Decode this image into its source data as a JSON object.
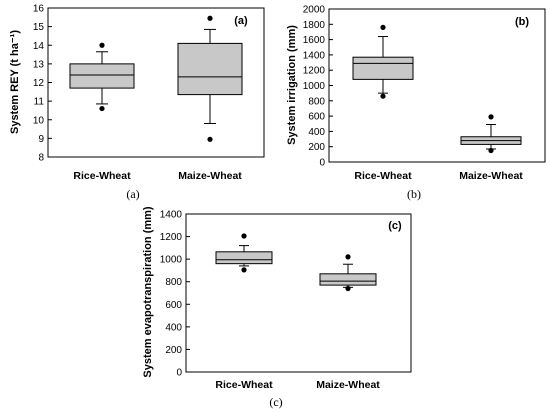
{
  "chart_data": [
    {
      "type": "box",
      "panel_label": "(a)",
      "caption": "(a)",
      "ylabel": "System REY (t ha⁻¹)",
      "ylim": [
        8,
        16
      ],
      "yticks": [
        8,
        9,
        10,
        11,
        12,
        13,
        14,
        15,
        16
      ],
      "categories": [
        "Rice-Wheat",
        "Maize-Wheat"
      ],
      "boxes": [
        {
          "q1": 11.7,
          "median": 12.4,
          "q3": 13.0,
          "whisker_low": 10.85,
          "whisker_high": 13.65,
          "outliers": [
            10.6,
            14.0
          ]
        },
        {
          "q1": 11.35,
          "median": 12.3,
          "q3": 14.1,
          "whisker_low": 9.8,
          "whisker_high": 14.85,
          "outliers": [
            8.95,
            15.45
          ]
        }
      ]
    },
    {
      "type": "box",
      "panel_label": "(b)",
      "caption": "(b)",
      "ylabel": "System irrigation (mm)",
      "ylim": [
        0,
        2000
      ],
      "yticks": [
        0,
        200,
        400,
        600,
        800,
        1000,
        1200,
        1400,
        1600,
        1800,
        2000
      ],
      "categories": [
        "Rice-Wheat",
        "Maize-Wheat"
      ],
      "boxes": [
        {
          "q1": 1080,
          "median": 1290,
          "q3": 1370,
          "whisker_low": 900,
          "whisker_high": 1640,
          "outliers": [
            860,
            1760
          ]
        },
        {
          "q1": 230,
          "median": 280,
          "q3": 330,
          "whisker_low": 170,
          "whisker_high": 490,
          "outliers": [
            150,
            590
          ]
        }
      ]
    },
    {
      "type": "box",
      "panel_label": "(c)",
      "caption": "(c)",
      "ylabel": "System evapotranspiration (mm)",
      "ylim": [
        0,
        1400
      ],
      "yticks": [
        0,
        200,
        400,
        600,
        800,
        1000,
        1200,
        1400
      ],
      "categories": [
        "Rice-Wheat",
        "Maize-Wheat"
      ],
      "boxes": [
        {
          "q1": 960,
          "median": 995,
          "q3": 1065,
          "whisker_low": 940,
          "whisker_high": 1120,
          "outliers": [
            905,
            1205
          ]
        },
        {
          "q1": 770,
          "median": 805,
          "q3": 870,
          "whisker_low": 750,
          "whisker_high": 955,
          "outliers": [
            740,
            1020
          ]
        }
      ]
    }
  ],
  "colors": {
    "box_fill": "#c8c8c8",
    "line": "#000000"
  }
}
